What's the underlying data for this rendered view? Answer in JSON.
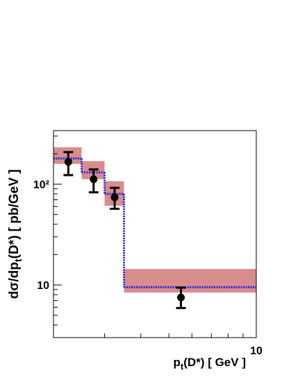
{
  "chart_data": {
    "type": "hep",
    "x_label": [
      "p",
      "t",
      "(D*) [ GeV ]"
    ],
    "y_label": [
      "dσ/dp",
      "t",
      "(D*) [ pb/GeV ]"
    ],
    "log_x": true,
    "log_y": true,
    "xlim": [
      2,
      10
    ],
    "ylim": [
      3,
      340
    ],
    "xticks": [
      10
    ],
    "yticks": [
      10,
      {
        "value": 100,
        "label": "10²"
      }
    ],
    "xminorticks": [
      3,
      4,
      5,
      6,
      7,
      8,
      9
    ],
    "yminorticks": [
      4,
      5,
      6,
      7,
      8,
      9,
      20,
      30,
      40,
      50,
      60,
      70,
      80,
      90,
      200,
      300
    ],
    "bins": [
      2,
      2.5,
      3,
      3.5,
      10
    ],
    "band": {
      "color": "#d98c8c",
      "low": [
        159,
        112,
        61,
        8.4
      ],
      "high": [
        232,
        169,
        107,
        14.4
      ]
    },
    "central": {
      "color": "#1f1fe6",
      "values": [
        180,
        131,
        80,
        9.5
      ]
    },
    "data": {
      "color": "#000000",
      "x": [
        2.25,
        2.75,
        3.25,
        5.5
      ],
      "values": [
        166,
        112,
        74,
        7.5
      ],
      "err_high": [
        208,
        140,
        92,
        9.4
      ],
      "err_low": [
        123,
        83,
        57,
        5.9
      ]
    }
  }
}
